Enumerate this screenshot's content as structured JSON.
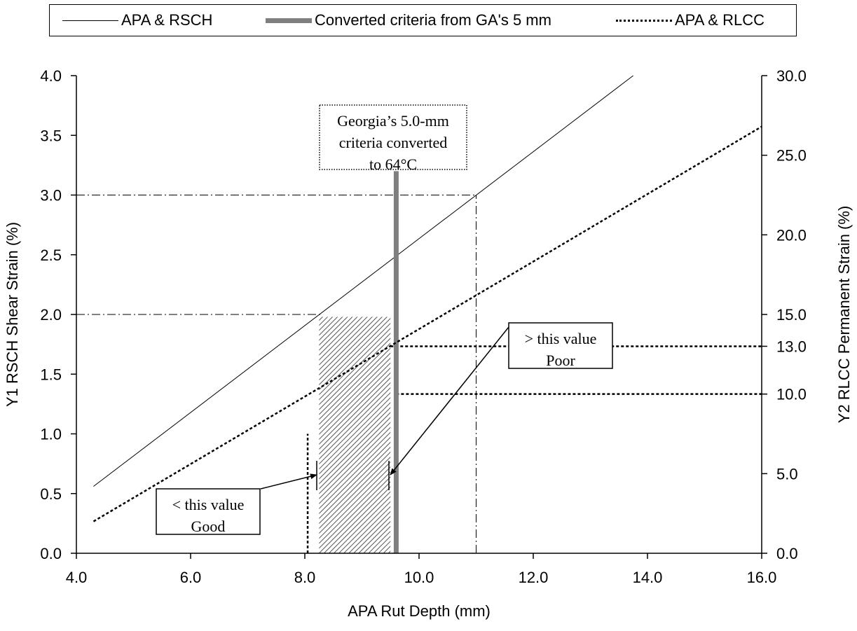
{
  "chart_data": {
    "type": "line",
    "xlabel": "APA Rut Depth (mm)",
    "ylabel": "Y1 RSCH Shear Strain (%)",
    "y2label": "Y2 RLCC Permanent Strain (%)",
    "xlim": [
      4.0,
      16.0
    ],
    "ylim": [
      0.0,
      4.0
    ],
    "y2lim": [
      0.0,
      30.0
    ],
    "x_ticks": [
      "4.0",
      "6.0",
      "8.0",
      "10.0",
      "12.0",
      "14.0",
      "16.0"
    ],
    "y_ticks": [
      "0.0",
      "0.5",
      "1.0",
      "1.5",
      "2.0",
      "2.5",
      "3.0",
      "3.5",
      "4.0"
    ],
    "y2_ticks": [
      "0.0",
      "5.0",
      "10.0",
      "13.0",
      "15.0",
      "20.0",
      "25.0",
      "30.0"
    ],
    "legend_position": "top",
    "series": [
      {
        "name": "APA & RSCH",
        "axis": "y1",
        "style": "thin-solid",
        "color": "#000000",
        "x": [
          4.3,
          13.75
        ],
        "y": [
          0.56,
          4.0
        ]
      },
      {
        "name": "Converted criteria from GA's 5 mm",
        "axis": "y1",
        "style": "thick-gray",
        "color": "#7f7f7f",
        "x": [
          9.6,
          9.6
        ],
        "y": [
          0.0,
          3.2
        ]
      },
      {
        "name": "APA & RLCC",
        "axis": "y2",
        "style": "dotted",
        "color": "#000000",
        "x": [
          4.3,
          16.0
        ],
        "y": [
          2.0,
          26.8
        ]
      }
    ],
    "reference_lines": [
      {
        "axis": "y1",
        "y": 2.0,
        "x_from": 4.0,
        "x_to": 8.3,
        "style": "dash-dot"
      },
      {
        "axis": "y1",
        "y": 3.0,
        "x_from": 4.0,
        "x_to": 11.0,
        "style": "dash-dot"
      },
      {
        "axis": "x",
        "x": 11.0,
        "y_from": 0.0,
        "y_to": 3.0,
        "style": "dash-dot"
      },
      {
        "axis": "y2",
        "y": 13.0,
        "x_from": 9.5,
        "x_to": 16.0,
        "style": "dotted"
      },
      {
        "axis": "y2",
        "y": 10.0,
        "x_from": 9.6,
        "x_to": 16.0,
        "style": "dotted"
      },
      {
        "axis": "x",
        "x": 8.05,
        "y_from": 0.0,
        "y_to": 1.0,
        "style": "dotted"
      }
    ],
    "shaded_region": {
      "x": [
        8.25,
        9.5
      ],
      "y": [
        0.0,
        1.98
      ],
      "pattern": "diagonal-hatch"
    },
    "annotations": {
      "georgia": [
        "Georgia’s 5.0-mm",
        "criteria converted",
        "to 64°C"
      ],
      "good": [
        "< this value",
        "Good"
      ],
      "poor": [
        "> this value",
        "Poor"
      ]
    }
  }
}
